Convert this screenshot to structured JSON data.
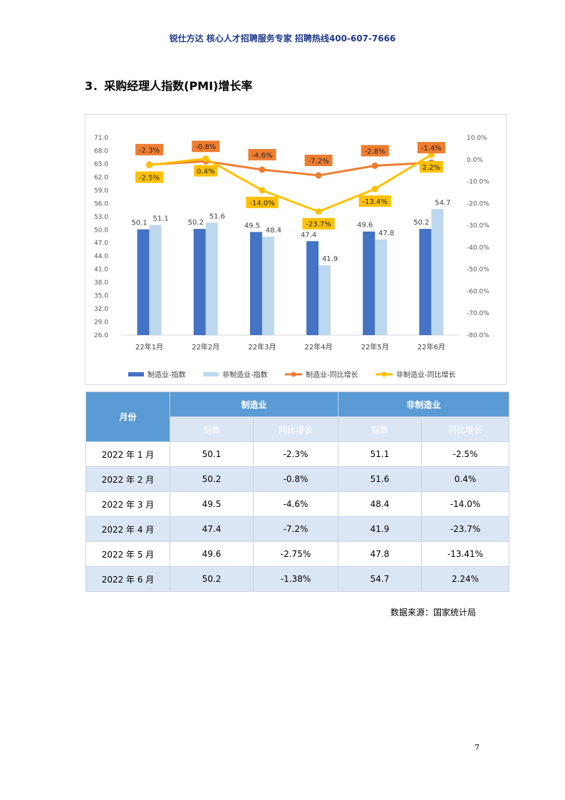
{
  "header": "锐仕方达 核心人才招聘服务专家 招聘热线400-607-7666",
  "section_title": "3．采购经理人指数(PMI)增长率",
  "chart_data": {
    "type": "bar+line",
    "categories": [
      "22年1月",
      "22年2月",
      "22年3月",
      "22年4月",
      "22年5月",
      "22年6月"
    ],
    "left_axis": {
      "min": 26.0,
      "max": 71.0,
      "step": 3.0
    },
    "right_axis": {
      "min": -80.0,
      "max": 10.0,
      "step": 10.0
    },
    "left_ticks": [
      "71.0",
      "68.0",
      "65.0",
      "62.0",
      "59.0",
      "56.0",
      "53.0",
      "50.0",
      "47.0",
      "44.0",
      "41.0",
      "38.0",
      "35.0",
      "32.0",
      "29.0",
      "26.0"
    ],
    "right_ticks": [
      "10.0%",
      "0.0%",
      "-10.0%",
      "-20.0%",
      "-30.0%",
      "-40.0%",
      "-50.0%",
      "-60.0%",
      "-70.0%",
      "-80.0%"
    ],
    "series": [
      {
        "name": "制造业-指数",
        "type": "bar",
        "axis": "left",
        "color": "#4472c4",
        "values": [
          50.1,
          50.2,
          49.5,
          47.4,
          49.6,
          50.2
        ],
        "labels": [
          "50.1",
          "50.2",
          "49.5",
          "47.4",
          "49.6",
          "50.2"
        ]
      },
      {
        "name": "非制造业-指数",
        "type": "bar",
        "axis": "left",
        "color": "#bdd7ee",
        "values": [
          51.1,
          51.6,
          48.4,
          41.9,
          47.8,
          54.7
        ],
        "labels": [
          "51.1",
          "51.6",
          "48.4",
          "41.9",
          "47.8",
          "54.7"
        ]
      },
      {
        "name": "制造业-同比增长",
        "type": "line",
        "axis": "right",
        "color": "#ed7d31",
        "values": [
          -2.3,
          -0.8,
          -4.6,
          -7.2,
          -2.8,
          -1.4
        ],
        "labels": [
          "-2.3%",
          "-0.8%",
          "-4.6%",
          "-7.2%",
          "-2.8%",
          "-1.4%"
        ]
      },
      {
        "name": "非制造业-同比增长",
        "type": "line",
        "axis": "right",
        "color": "#ffc000",
        "values": [
          -2.5,
          0.4,
          -14.0,
          -23.7,
          -13.4,
          2.2
        ],
        "labels": [
          "-2.5%",
          "0.4%",
          "-14.0%",
          "-23.7%",
          "-13.4%",
          "2.2%"
        ]
      }
    ],
    "legend_position": "bottom"
  },
  "table": {
    "corner": "月份",
    "group_headers": [
      "制造业",
      "非制造业"
    ],
    "sub_headers": [
      "指数",
      "同比增长",
      "指数",
      "同比增长"
    ],
    "rows": [
      [
        "2022 年 1 月",
        "50.1",
        "-2.3%",
        "51.1",
        "-2.5%"
      ],
      [
        "2022 年 2 月",
        "50.2",
        "-0.8%",
        "51.6",
        "0.4%"
      ],
      [
        "2022 年 3 月",
        "49.5",
        "-4.6%",
        "48.4",
        "-14.0%"
      ],
      [
        "2022 年 4 月",
        "47.4",
        "-7.2%",
        "41.9",
        "-23.7%"
      ],
      [
        "2022 年 5 月",
        "49.6",
        "-2.75%",
        "47.8",
        "-13.41%"
      ],
      [
        "2022 年 6 月",
        "50.2",
        "-1.38%",
        "54.7",
        "2.24%"
      ]
    ]
  },
  "source": "数据来源：国家统计局",
  "page_number": "7"
}
